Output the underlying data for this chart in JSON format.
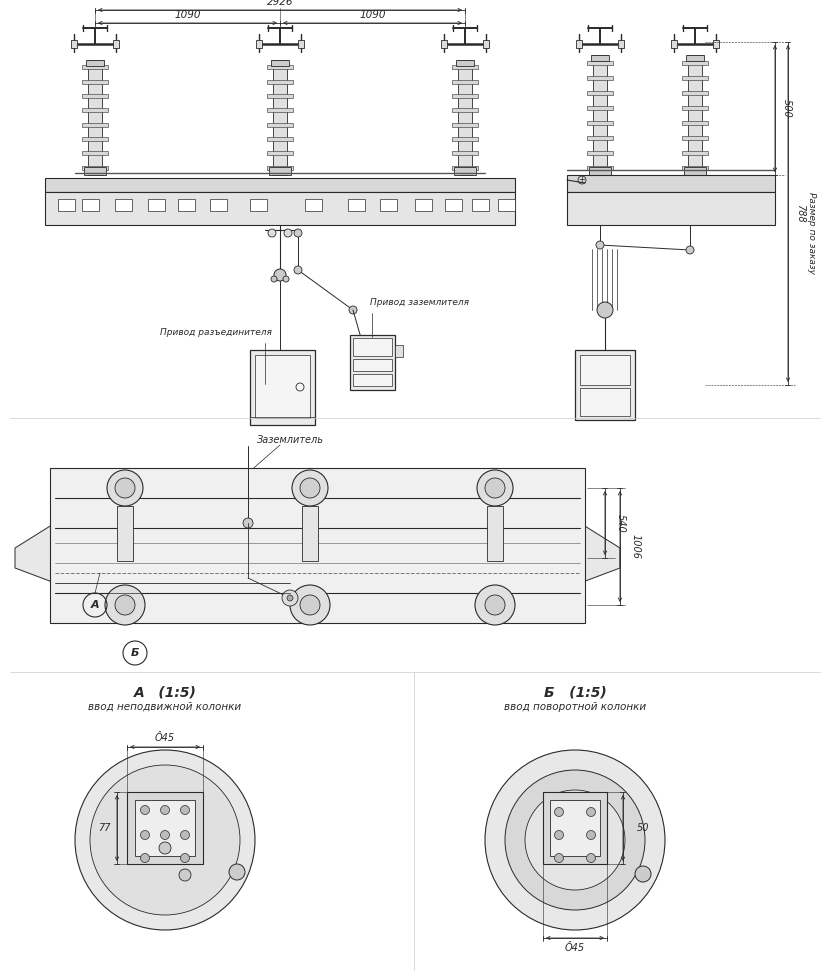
{
  "bg_color": "#ffffff",
  "lc": "#2a2a2a",
  "dc": "#2a2a2a",
  "gc": "#777777",
  "dim_2926": "2926",
  "dim_1090a": "1090",
  "dim_1090b": "1090",
  "dim_500": "500",
  "dim_788": "788",
  "dim_540": "540",
  "dim_1006": "1006",
  "dim_45a": "Ô45",
  "dim_77": "77",
  "dim_50": "50",
  "dim_45b": "Ô45",
  "lbl_privod_raz": "Привод разъединителя",
  "lbl_privod_zaz": "Привод заземлителя",
  "lbl_zazemlitel": "Заземлитель",
  "lbl_razmer": "Размер по заказу",
  "lbl_A": "А",
  "lbl_B": "Б",
  "lbl_A_title": "А   (1:5)",
  "lbl_B_title": "Б   (1:5)",
  "lbl_A_sub": "ввод неподвижной колонки",
  "lbl_B_sub": "ввод поворотной колонки",
  "fig_w": 8.28,
  "fig_h": 9.74
}
